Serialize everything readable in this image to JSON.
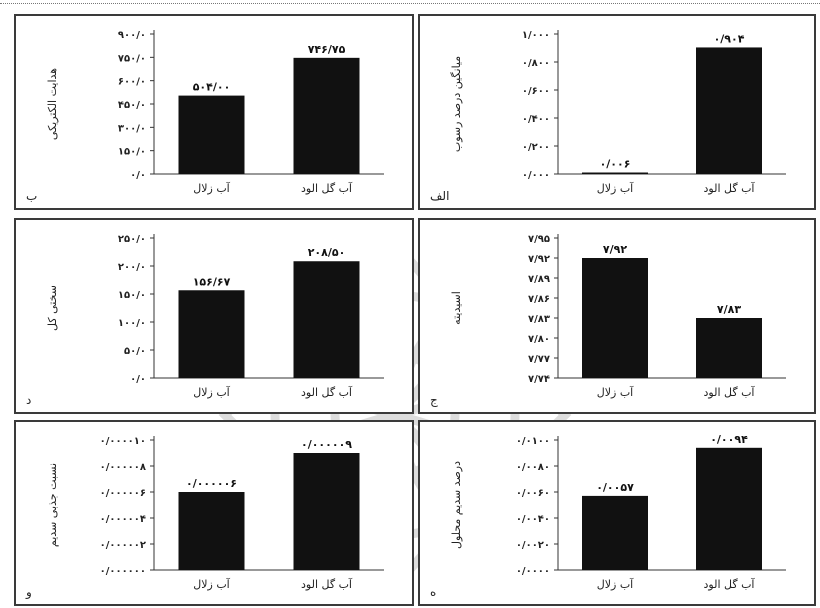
{
  "chart_data": [
    {
      "type": "bar",
      "panel_label": "الف",
      "ylabel": "میانگین درصد رسوب",
      "categories": [
        "آب زلال",
        "آب گل الود"
      ],
      "values": [
        0.006,
        0.904
      ],
      "value_labels": [
        "۰/۰۰۶",
        "۰/۹۰۴"
      ],
      "ylim": [
        0,
        1.0
      ],
      "ticks": [
        0,
        0.2,
        0.4,
        0.6,
        0.8,
        1.0
      ],
      "tick_labels": [
        "۰/۰۰۰",
        "۰/۲۰۰",
        "۰/۴۰۰",
        "۰/۶۰۰",
        "۰/۸۰۰",
        "۱/۰۰۰"
      ],
      "grid": false,
      "legend": "none"
    },
    {
      "type": "bar",
      "panel_label": "ب",
      "ylabel": "هدایت الکتریکی",
      "categories": [
        "آب زلال",
        "آب گل الود"
      ],
      "values": [
        504.0,
        746.75
      ],
      "value_labels": [
        "۵۰۴/۰۰",
        "۷۴۶/۷۵"
      ],
      "ylim": [
        0,
        900
      ],
      "ticks": [
        0,
        150,
        300,
        450,
        600,
        750,
        900
      ],
      "tick_labels": [
        "۰/۰",
        "۱۵۰/۰",
        "۳۰۰/۰",
        "۴۵۰/۰",
        "۶۰۰/۰",
        "۷۵۰/۰",
        "۹۰۰/۰"
      ],
      "grid": false,
      "legend": "none"
    },
    {
      "type": "bar",
      "panel_label": "ج",
      "ylabel": "اسیدیته",
      "categories": [
        "آب زلال",
        "آب گل الود"
      ],
      "values": [
        7.92,
        7.83
      ],
      "value_labels": [
        "۷/۹۲",
        "۷/۸۳"
      ],
      "ylim": [
        7.74,
        7.95
      ],
      "ticks": [
        7.74,
        7.77,
        7.8,
        7.83,
        7.86,
        7.89,
        7.92,
        7.95
      ],
      "tick_labels": [
        "۷/۷۴",
        "۷/۷۷",
        "۷/۸۰",
        "۷/۸۳",
        "۷/۸۶",
        "۷/۸۹",
        "۷/۹۲",
        "۷/۹۵"
      ],
      "grid": false,
      "legend": "none"
    },
    {
      "type": "bar",
      "panel_label": "د",
      "ylabel": "سختی کل",
      "categories": [
        "آب زلال",
        "آب گل الود"
      ],
      "values": [
        156.67,
        208.5
      ],
      "value_labels": [
        "۱۵۶/۶۷",
        "۲۰۸/۵۰"
      ],
      "ylim": [
        0,
        250
      ],
      "ticks": [
        0,
        50,
        100,
        150,
        200,
        250
      ],
      "tick_labels": [
        "۰/۰",
        "۵۰/۰",
        "۱۰۰/۰",
        "۱۵۰/۰",
        "۲۰۰/۰",
        "۲۵۰/۰"
      ],
      "grid": false,
      "legend": "none"
    },
    {
      "type": "bar",
      "panel_label": "ه",
      "ylabel": "درصد سدیم محلول",
      "categories": [
        "آب زلال",
        "آب گل الود"
      ],
      "values": [
        0.0057,
        0.0094
      ],
      "value_labels": [
        "۰/۰۰۵۷",
        "۰/۰۰۹۴"
      ],
      "ylim": [
        0,
        0.01
      ],
      "ticks": [
        0,
        0.002,
        0.004,
        0.006,
        0.008,
        0.01
      ],
      "tick_labels": [
        "۰/۰۰۰۰",
        "۰/۰۰۲۰",
        "۰/۰۰۴۰",
        "۰/۰۰۶۰",
        "۰/۰۰۸۰",
        "۰/۰۱۰۰"
      ],
      "grid": false,
      "legend": "none"
    },
    {
      "type": "bar",
      "panel_label": "و",
      "ylabel": "نسبت جذبی سدیم",
      "categories": [
        "آب زلال",
        "آب گل الود"
      ],
      "values": [
        6e-06,
        9e-06
      ],
      "value_labels": [
        "۰/۰۰۰۰۰۶",
        "۰/۰۰۰۰۰۹"
      ],
      "ylim": [
        0,
        1e-05
      ],
      "ticks": [
        0,
        2e-06,
        4e-06,
        6e-06,
        8e-06,
        1e-05
      ],
      "tick_labels": [
        "۰/۰۰۰۰۰۰",
        "۰/۰۰۰۰۰۲",
        "۰/۰۰۰۰۰۴",
        "۰/۰۰۰۰۰۶",
        "۰/۰۰۰۰۰۸",
        "۰/۰۰۰۰۱۰"
      ],
      "grid": false,
      "legend": "none"
    }
  ]
}
